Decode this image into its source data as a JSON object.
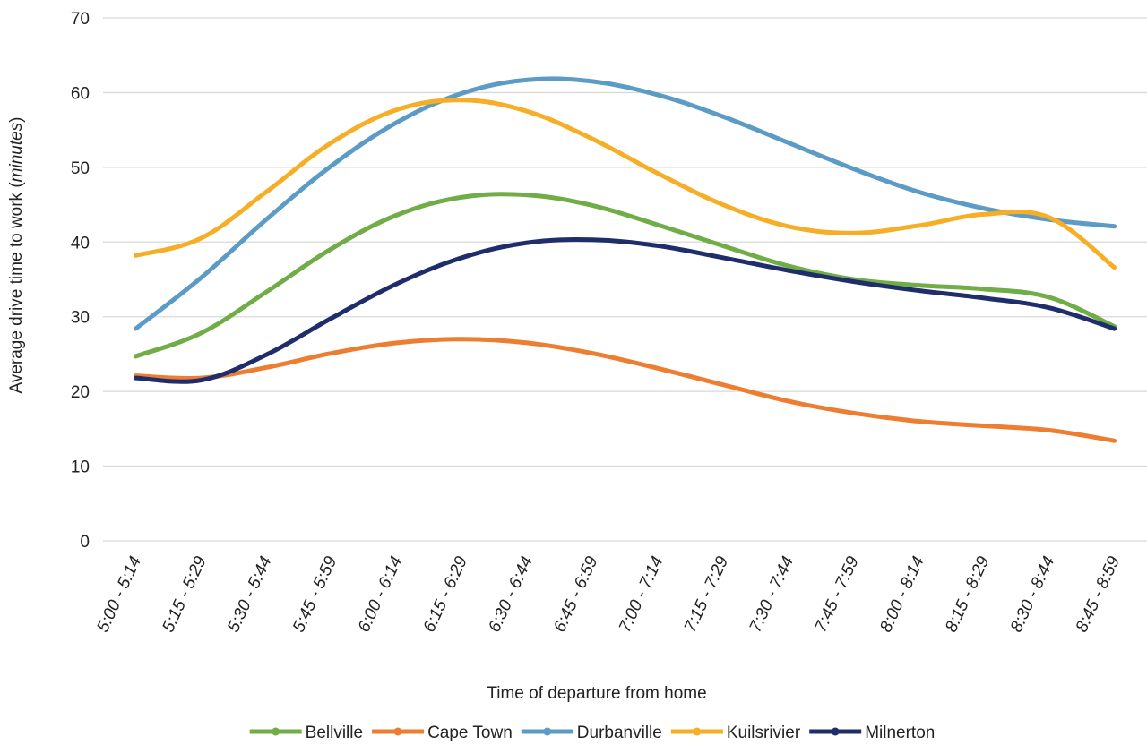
{
  "chart_data": {
    "type": "line",
    "xlabel": "Time of departure from home",
    "ylabel_main": "Average drive time to work (",
    "ylabel_em": "minutes",
    "ylabel_close": ")",
    "ylim": [
      0,
      70
    ],
    "yticks": [
      0,
      10,
      20,
      30,
      40,
      50,
      60,
      70
    ],
    "grid": true,
    "legend_position": "bottom",
    "categories": [
      "5:00 - 5:14",
      "5:15 - 5:29",
      "5:30 - 5:44",
      "5:45 - 5:59",
      "6:00 - 6:14",
      "6:15 - 6:29",
      "6:30 - 6:44",
      "6:45 - 6:59",
      "7:00 - 7:14",
      "7:15 - 7:29",
      "7:30 - 7:44",
      "7:45 - 7:59",
      "8:00 - 8:14",
      "8:15 - 8:29",
      "8:30 - 8:44",
      "8:45 - 8:59"
    ],
    "series": [
      {
        "name": "Bellville",
        "color": "#70ad47",
        "values": [
          24.7,
          27.8,
          33.3,
          39.1,
          43.6,
          46.0,
          46.3,
          44.9,
          42.3,
          39.5,
          36.8,
          35.0,
          34.2,
          33.7,
          32.6,
          28.7
        ]
      },
      {
        "name": "Cape Town",
        "color": "#ed7d31",
        "values": [
          22.1,
          21.8,
          23.2,
          25.1,
          26.5,
          27.0,
          26.5,
          25.1,
          23.1,
          20.9,
          18.7,
          17.1,
          16.0,
          15.4,
          14.8,
          13.4
        ]
      },
      {
        "name": "Durbanville",
        "color": "#5b9bc5",
        "values": [
          28.4,
          35.2,
          43.0,
          50.2,
          56.0,
          59.9,
          61.7,
          61.5,
          59.7,
          56.8,
          53.3,
          49.8,
          46.7,
          44.5,
          43.0,
          42.1
        ]
      },
      {
        "name": "Kuilsrivier",
        "color": "#f5ae26",
        "values": [
          38.2,
          40.5,
          46.7,
          53.3,
          57.7,
          59.0,
          57.5,
          53.8,
          49.2,
          45.0,
          42.1,
          41.2,
          42.2,
          43.7,
          43.3,
          36.6
        ]
      },
      {
        "name": "Milnerton",
        "color": "#1f2d6b",
        "values": [
          21.8,
          21.5,
          24.9,
          29.8,
          34.4,
          37.9,
          39.9,
          40.3,
          39.5,
          37.9,
          36.2,
          34.7,
          33.5,
          32.5,
          31.2,
          28.4
        ]
      }
    ]
  }
}
